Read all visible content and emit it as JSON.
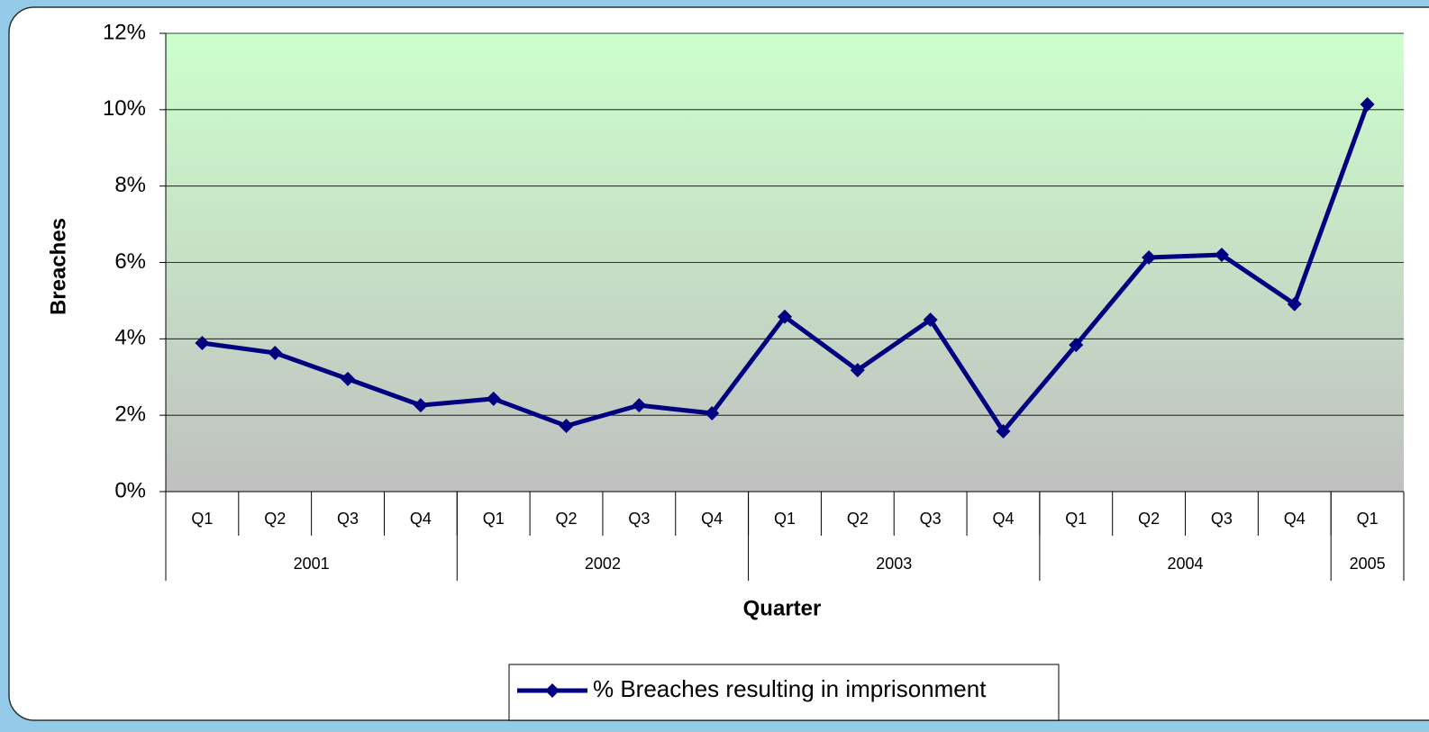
{
  "chart_data": {
    "type": "line",
    "x_label": "Quarter",
    "y_label": "Breaches",
    "categories": [
      "Q1",
      "Q2",
      "Q3",
      "Q4",
      "Q1",
      "Q2",
      "Q3",
      "Q4",
      "Q1",
      "Q2",
      "Q3",
      "Q4",
      "Q1",
      "Q2",
      "Q3",
      "Q4",
      "Q1"
    ],
    "groups": [
      {
        "label": "2001",
        "span": 4
      },
      {
        "label": "2002",
        "span": 4
      },
      {
        "label": "2003",
        "span": 4
      },
      {
        "label": "2004",
        "span": 4
      },
      {
        "label": "2005",
        "span": 1
      }
    ],
    "series": [
      {
        "name": "% Breaches resulting in imprisonment",
        "color": "#000080",
        "values": [
          3.89,
          3.63,
          2.95,
          2.26,
          2.43,
          1.72,
          2.26,
          2.05,
          4.58,
          3.18,
          4.5,
          1.58,
          3.84,
          6.13,
          6.2,
          4.91,
          10.14
        ]
      }
    ],
    "ylim": [
      0,
      12
    ],
    "yticks": [
      {
        "value": 0,
        "label": "0%"
      },
      {
        "value": 2,
        "label": "2%"
      },
      {
        "value": 4,
        "label": "4%"
      },
      {
        "value": 6,
        "label": "6%"
      },
      {
        "value": 8,
        "label": "8%"
      },
      {
        "value": 10,
        "label": "10%"
      },
      {
        "value": 12,
        "label": "12%"
      }
    ],
    "grid": true
  }
}
